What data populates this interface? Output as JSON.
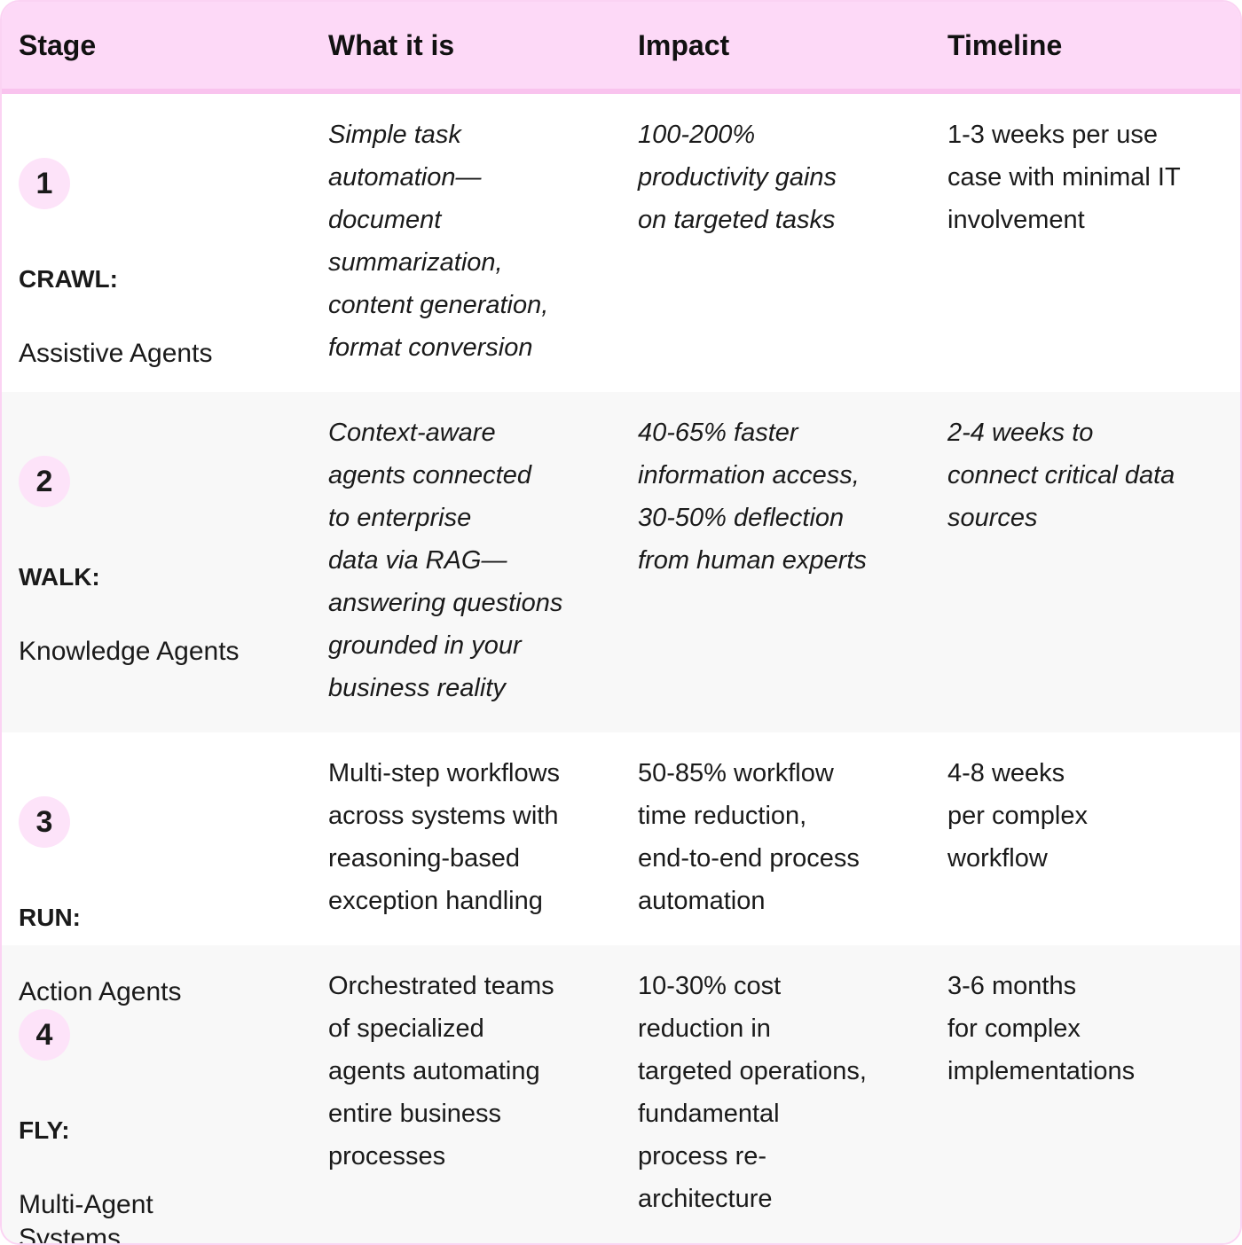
{
  "headers": [
    "Stage",
    "What it is",
    "Impact",
    "Timeline"
  ],
  "colors": {
    "header_bg": "#fdd9f7",
    "header_border": "#f9c3ee",
    "badge_bg": "#fde3f9",
    "alt_row": "#f8f8f8"
  },
  "rows": [
    {
      "num": "1",
      "label": "CRAWL:",
      "name": "Assistive Agents",
      "what": "Simple task\nautomation—\ndocument\nsummarization,\ncontent generation,\nformat conversion",
      "impact": "100-200%\nproductivity gains\non targeted tasks",
      "timeline": "1-3 weeks per use\ncase with minimal IT\ninvolvement"
    },
    {
      "num": "2",
      "label": "WALK:",
      "name": "Knowledge Agents",
      "what": "Context-aware\nagents connected\nto enterprise\ndata via RAG—\nanswering questions\ngrounded in your\nbusiness reality",
      "impact": "40-65% faster\ninformation access,\n30-50% deflection\nfrom human experts",
      "timeline": "2-4 weeks to\nconnect critical data\nsources"
    },
    {
      "num": "3",
      "label": "RUN:",
      "name": "Action Agents",
      "what": "Multi-step workflows\nacross systems with\nreasoning-based\nexception handling",
      "impact": "50-85% workflow\ntime reduction,\nend-to-end process\nautomation",
      "timeline": "4-8 weeks\nper complex\nworkflow"
    },
    {
      "num": "4",
      "label": "FLY:",
      "name": "Multi-Agent\nSystems",
      "what": "Orchestrated teams\nof specialized\nagents automating\nentire business\nprocesses",
      "impact": "10-30% cost\nreduction in\ntargeted operations,\nfundamental\nprocess re-\narchitecture",
      "timeline": "3-6 months\nfor complex\nimplementations"
    }
  ]
}
